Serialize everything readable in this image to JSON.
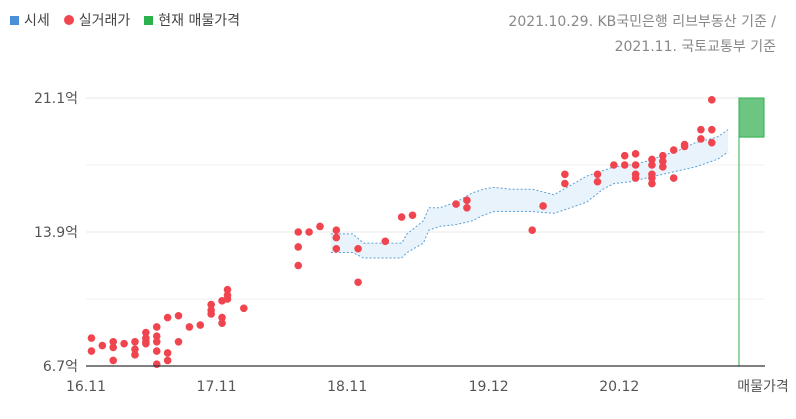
{
  "legend": {
    "items": [
      {
        "label": "시세",
        "color": "#4a90d9",
        "shape": "square"
      },
      {
        "label": "실거래가",
        "color": "#f0454f",
        "shape": "circle"
      },
      {
        "label": "현재 매물가격",
        "color": "#2bb24c",
        "shape": "square"
      }
    ]
  },
  "source": {
    "line1": "2021.10.29. KB국민은행 리브부동산 기준 /",
    "line2": "2021.11. 국토교통부 기준"
  },
  "colors": {
    "band_fill": "#e9f3fb",
    "band_stroke": "#5aa0d8",
    "dot": "#f0454f",
    "listing_fill": "#6cc580",
    "listing_stroke": "#2bb24c",
    "grid": "#e8e8e8",
    "axis": "#333333"
  },
  "chart_data": {
    "type": "scatter",
    "ylim": [
      6.7,
      21.1
    ],
    "y_ticks": [
      {
        "value": 6.7,
        "label": "6.7억"
      },
      {
        "value": 13.9,
        "label": "13.9억"
      },
      {
        "value": 21.1,
        "label": "21.1억"
      }
    ],
    "x_range": [
      "2016-11",
      "2021-11"
    ],
    "x_ticks": [
      {
        "t": 0,
        "label": "16.11"
      },
      {
        "t": 12,
        "label": "17.11"
      },
      {
        "t": 24,
        "label": "18.11"
      },
      {
        "t": 37,
        "label": "19.12"
      },
      {
        "t": 49,
        "label": "20.12"
      }
    ],
    "x_extra_label": "매물가격",
    "market_price_band": {
      "name": "시세",
      "t": [
        22.5,
        23.5,
        24.5,
        25.5,
        27,
        29,
        29.5,
        31,
        31.5,
        32.5,
        34,
        35.5,
        36.5,
        37.5,
        39,
        41,
        43,
        44.5,
        46,
        47.5,
        48.5,
        50,
        51.5,
        53,
        54.5,
        56,
        58,
        59
      ],
      "upper": [
        13.8,
        13.8,
        13.8,
        13.3,
        13.3,
        13.3,
        13.8,
        14.5,
        15.2,
        15.2,
        15.5,
        16.0,
        16.2,
        16.3,
        16.2,
        16.2,
        15.9,
        16.4,
        16.9,
        17.2,
        17.4,
        17.5,
        17.7,
        18.0,
        18.3,
        18.7,
        19.0,
        19.4
      ],
      "lower": [
        12.8,
        12.8,
        12.8,
        12.5,
        12.5,
        12.5,
        12.8,
        13.3,
        14.0,
        14.2,
        14.3,
        14.5,
        14.8,
        15.0,
        15.0,
        15.0,
        14.9,
        15.2,
        15.5,
        16.2,
        16.5,
        16.6,
        16.8,
        17.0,
        17.2,
        17.4,
        17.8,
        18.2
      ]
    },
    "transactions": {
      "name": "실거래가",
      "points": [
        {
          "t": 0.5,
          "y": 8.2
        },
        {
          "t": 0.5,
          "y": 7.5
        },
        {
          "t": 1.5,
          "y": 7.8
        },
        {
          "t": 2.5,
          "y": 8.0
        },
        {
          "t": 2.5,
          "y": 7.7
        },
        {
          "t": 2.5,
          "y": 7.0
        },
        {
          "t": 3.5,
          "y": 7.9
        },
        {
          "t": 4.5,
          "y": 8.0
        },
        {
          "t": 4.5,
          "y": 7.6
        },
        {
          "t": 4.5,
          "y": 7.3
        },
        {
          "t": 5.5,
          "y": 8.5
        },
        {
          "t": 5.5,
          "y": 8.2
        },
        {
          "t": 5.5,
          "y": 7.9
        },
        {
          "t": 5.5,
          "y": 8.0
        },
        {
          "t": 6.5,
          "y": 8.8
        },
        {
          "t": 6.5,
          "y": 8.3
        },
        {
          "t": 6.5,
          "y": 8.0
        },
        {
          "t": 6.5,
          "y": 7.5
        },
        {
          "t": 6.5,
          "y": 6.8
        },
        {
          "t": 7.5,
          "y": 9.3
        },
        {
          "t": 7.5,
          "y": 7.4
        },
        {
          "t": 7.5,
          "y": 7.0
        },
        {
          "t": 8.5,
          "y": 9.4
        },
        {
          "t": 8.5,
          "y": 8.0
        },
        {
          "t": 9.5,
          "y": 8.8
        },
        {
          "t": 10.5,
          "y": 8.9
        },
        {
          "t": 11.5,
          "y": 10.0
        },
        {
          "t": 11.5,
          "y": 9.7
        },
        {
          "t": 11.5,
          "y": 9.5
        },
        {
          "t": 12.5,
          "y": 10.2
        },
        {
          "t": 12.5,
          "y": 9.3
        },
        {
          "t": 12.5,
          "y": 9.0
        },
        {
          "t": 13.0,
          "y": 10.5
        },
        {
          "t": 13.0,
          "y": 10.3
        },
        {
          "t": 13.0,
          "y": 10.8
        },
        {
          "t": 14.5,
          "y": 9.8
        },
        {
          "t": 19.5,
          "y": 13.9
        },
        {
          "t": 19.5,
          "y": 13.1
        },
        {
          "t": 19.5,
          "y": 12.1
        },
        {
          "t": 20.5,
          "y": 13.9
        },
        {
          "t": 21.5,
          "y": 14.2
        },
        {
          "t": 23.0,
          "y": 14.0
        },
        {
          "t": 23.0,
          "y": 13.6
        },
        {
          "t": 23.0,
          "y": 13.0
        },
        {
          "t": 25.0,
          "y": 13.0
        },
        {
          "t": 25.0,
          "y": 11.2
        },
        {
          "t": 27.5,
          "y": 13.4
        },
        {
          "t": 29.0,
          "y": 14.7
        },
        {
          "t": 30.0,
          "y": 14.8
        },
        {
          "t": 34.0,
          "y": 15.4
        },
        {
          "t": 35.0,
          "y": 15.6
        },
        {
          "t": 35.0,
          "y": 15.2
        },
        {
          "t": 41.0,
          "y": 14.0
        },
        {
          "t": 42.0,
          "y": 15.3
        },
        {
          "t": 44.0,
          "y": 17.0
        },
        {
          "t": 44.0,
          "y": 16.5
        },
        {
          "t": 47.0,
          "y": 17.0
        },
        {
          "t": 47.0,
          "y": 16.6
        },
        {
          "t": 48.5,
          "y": 17.5
        },
        {
          "t": 49.5,
          "y": 18.0
        },
        {
          "t": 49.5,
          "y": 17.5
        },
        {
          "t": 50.5,
          "y": 18.1
        },
        {
          "t": 50.5,
          "y": 17.5
        },
        {
          "t": 50.5,
          "y": 17.0
        },
        {
          "t": 50.5,
          "y": 16.8
        },
        {
          "t": 52.0,
          "y": 17.8
        },
        {
          "t": 52.0,
          "y": 17.5
        },
        {
          "t": 52.0,
          "y": 17.0
        },
        {
          "t": 52.0,
          "y": 16.8
        },
        {
          "t": 52.0,
          "y": 16.5
        },
        {
          "t": 53.0,
          "y": 18.0
        },
        {
          "t": 53.0,
          "y": 17.7
        },
        {
          "t": 53.0,
          "y": 17.4
        },
        {
          "t": 54.0,
          "y": 18.3
        },
        {
          "t": 54.0,
          "y": 16.8
        },
        {
          "t": 55.0,
          "y": 18.6
        },
        {
          "t": 55.0,
          "y": 18.5
        },
        {
          "t": 56.5,
          "y": 19.4
        },
        {
          "t": 56.5,
          "y": 18.9
        },
        {
          "t": 57.5,
          "y": 19.4
        },
        {
          "t": 57.5,
          "y": 18.7
        },
        {
          "t": 57.5,
          "y": 21.0
        }
      ]
    },
    "current_listing": {
      "name": "현재 매물가격",
      "low": 19.0,
      "high": 21.1
    }
  }
}
